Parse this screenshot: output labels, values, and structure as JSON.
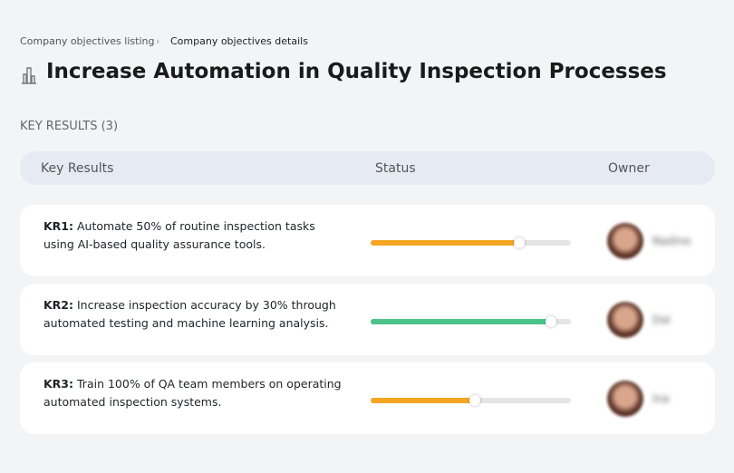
{
  "breadcrumb": {
    "items": [
      "Company objectives listing",
      "Company objectives details"
    ]
  },
  "header": {
    "title": "Increase Automation in Quality Inspection Processes"
  },
  "section": {
    "label": "KEY RESULTS (3)"
  },
  "table": {
    "columns": [
      "Key Results",
      "Status",
      "Owner"
    ],
    "rows": [
      {
        "label": "KR1:",
        "text": "Automate 50% of routine inspection tasks using AI-based quality assurance tools.",
        "progress": 74,
        "color": "#f5a623",
        "owner": "Nadine"
      },
      {
        "label": "KR2:",
        "text": "Increase inspection accuracy by 30% through automated testing and machine learning analysis.",
        "progress": 90,
        "color": "#4cc38a",
        "owner": "Dal"
      },
      {
        "label": "KR3:",
        "text": "Train 100% of QA team members on operating automated inspection systems.",
        "progress": 52,
        "color": "#f5a623",
        "owner": "Ina"
      }
    ]
  }
}
